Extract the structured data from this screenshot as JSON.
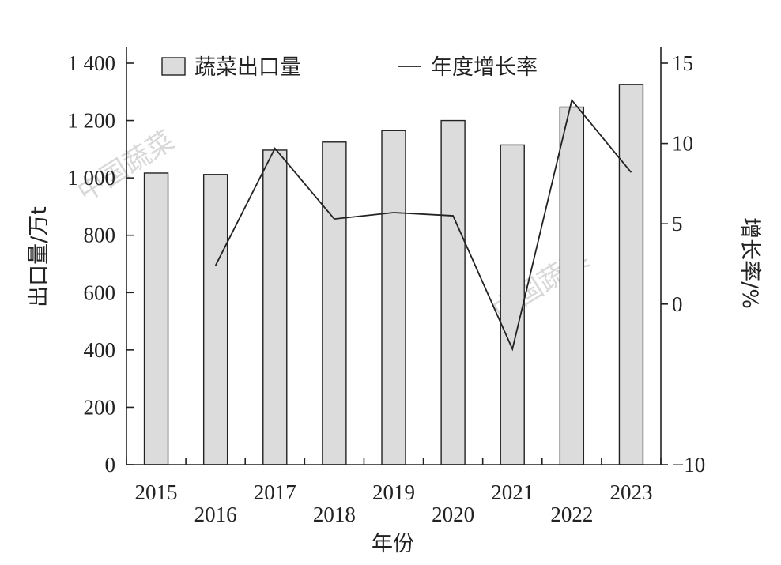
{
  "chart_data": {
    "type": "bar+line",
    "categories": [
      "2015",
      "2016",
      "2017",
      "2018",
      "2019",
      "2020",
      "2021",
      "2022",
      "2023"
    ],
    "series": [
      {
        "name": "蔬菜出口量",
        "type": "bar",
        "axis": "left",
        "values": [
          1017,
          1012,
          1097,
          1125,
          1165,
          1200,
          1115,
          1247,
          1326
        ]
      },
      {
        "name": "年度增长率",
        "type": "line",
        "axis": "right",
        "values": [
          null,
          2.4,
          9.7,
          5.3,
          5.7,
          5.5,
          -2.8,
          12.7,
          8.2
        ]
      }
    ],
    "xlabel": "年份",
    "ylabel": "出口量/万t",
    "y2label": "增长率/%",
    "ylim": [
      0,
      1400
    ],
    "y2lim": [
      -10,
      15
    ],
    "yticks": [
      0,
      200,
      400,
      600,
      800,
      1000,
      1200,
      1400
    ],
    "ytick_labels": [
      "0",
      "200",
      "400",
      "600",
      "800",
      "1 000",
      "1 200",
      "1 400"
    ],
    "y2ticks": [
      -10,
      0,
      5,
      10,
      15
    ],
    "y2tick_labels": [
      "−10",
      "0",
      "5",
      "10",
      "15"
    ],
    "legend_position": "top",
    "grid": false
  },
  "watermarks": [
    "中国蔬菜",
    "中国蔬菜"
  ]
}
